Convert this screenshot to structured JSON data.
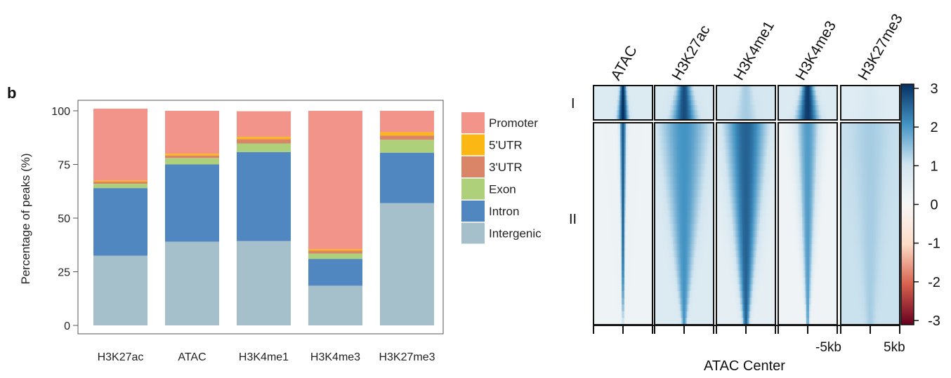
{
  "panel_label": "b",
  "chart_data": [
    {
      "type": "bar",
      "stacked": true,
      "ylabel": "Percentage of peaks (%)",
      "ylim": [
        0,
        105
      ],
      "yticks": [
        0,
        25,
        50,
        75,
        100
      ],
      "categories": [
        "H3K27ac",
        "ATAC",
        "H3K4me1",
        "H3K4me3",
        "H3K27me3"
      ],
      "series": [
        {
          "name": "Intergenic",
          "color": "#a5c0cb",
          "values": [
            32.5,
            39,
            39.3,
            18.5,
            57
          ]
        },
        {
          "name": "Intron",
          "color": "#5187c1",
          "values": [
            31.5,
            36,
            41.5,
            12.5,
            23.5
          ]
        },
        {
          "name": "Exon",
          "color": "#afd07b",
          "values": [
            2,
            3,
            4,
            2.5,
            6
          ]
        },
        {
          "name": "3'UTR",
          "color": "#da8468",
          "values": [
            1,
            1.2,
            2,
            1.3,
            2
          ]
        },
        {
          "name": "5'UTR",
          "color": "#fbb814",
          "values": [
            0.5,
            0.8,
            1,
            0.7,
            1.5
          ]
        },
        {
          "name": "Promoter",
          "color": "#f3948a",
          "values": [
            33.5,
            20,
            12,
            64.5,
            10
          ]
        }
      ],
      "legend_order": [
        "Promoter",
        "5'UTR",
        "3'UTR",
        "Exon",
        "Intron",
        "Intergenic"
      ],
      "legend_position": "right",
      "grid": false
    },
    {
      "type": "heatmap",
      "columns": [
        "ATAC",
        "H3K27ac",
        "H3K4me1",
        "H3K4me3",
        "H3K27me3"
      ],
      "row_groups": [
        "I",
        "II"
      ],
      "xlabel": "ATAC Center",
      "x_tick_labels": [
        "-5kb",
        "5kb"
      ],
      "colorbar": {
        "ticks": [
          "3",
          "2",
          "1",
          "0",
          "-1",
          "-2",
          "-3"
        ],
        "min": -3,
        "max": 3,
        "colors": [
          "#67001f",
          "#d6604d",
          "#fddbc7",
          "#f7f7f7",
          "#d1e5f0",
          "#4393c3",
          "#053061"
        ]
      },
      "profiles": {
        "ATAC": {
          "groupI": {
            "peak": 3.0,
            "bg": 0.7,
            "spread": 0.1
          },
          "groupII": {
            "peak": 2.6,
            "bg": 0.25,
            "spread_top": 0.08,
            "spread_bottom": 0.015
          }
        },
        "H3K27ac": {
          "groupI": {
            "peak": 2.7,
            "bg": 0.8,
            "spread": 0.22
          },
          "groupII": {
            "peak": 2.0,
            "bg": 0.7,
            "spread_top": 0.55,
            "spread_bottom": 0.06
          }
        },
        "H3K4me1": {
          "groupI": {
            "peak": 1.3,
            "bg": 0.9,
            "spread": 0.2
          },
          "groupII": {
            "peak": 2.5,
            "bg": 0.5,
            "spread_top": 0.5,
            "spread_bottom": 0.08
          }
        },
        "H3K4me3": {
          "groupI": {
            "peak": 2.9,
            "bg": 0.7,
            "spread": 0.2
          },
          "groupII": {
            "peak": 1.9,
            "bg": 0.2,
            "spread_top": 0.3,
            "spread_bottom": 0.04
          }
        },
        "H3K27me3": {
          "groupI": {
            "peak": 0.8,
            "bg": 0.6,
            "spread": 0.3
          },
          "groupII": {
            "peak": 1.3,
            "bg": 1.05,
            "spread_top": 0.4,
            "spread_bottom": 0.1
          }
        }
      }
    }
  ]
}
